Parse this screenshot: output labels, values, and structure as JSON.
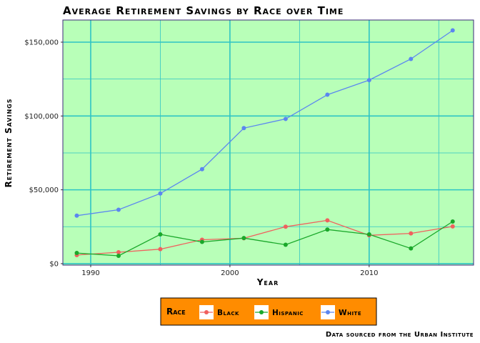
{
  "chart_data": {
    "type": "line",
    "title": "Average Retirement Savings by Race over Time",
    "xlabel": "Year",
    "ylabel": "Retirement Savings",
    "caption": "Data sourced from the Urban Institute",
    "xlim": [
      1988,
      2017.5
    ],
    "ylim": [
      -1000,
      165000
    ],
    "x_ticks": [
      1990,
      2000,
      2010
    ],
    "x_tick_labels": [
      "1990",
      "2000",
      "2010"
    ],
    "y_ticks": [
      0,
      50000,
      100000,
      150000
    ],
    "y_tick_labels": [
      "$0",
      "$50,000",
      "$100,000",
      "$150,000"
    ],
    "x_minor": [
      1995,
      2005,
      2015
    ],
    "y_minor": [
      25000,
      75000,
      125000
    ],
    "grid": true,
    "legend": {
      "title": "Race",
      "position": "bottom"
    },
    "colors": {
      "plot_bg": "#b8ffb8",
      "grid": "#2ec4c4",
      "legend_bg": "#ff8c00",
      "axis": "#3b2a7a"
    },
    "x": [
      1989,
      1992,
      1995,
      1998,
      2001,
      2004,
      2007,
      2010,
      2013,
      2016
    ],
    "series": [
      {
        "name": "Black",
        "color": "#f0605e",
        "values": [
          5800,
          7700,
          9800,
          16200,
          17200,
          25000,
          29300,
          19200,
          20500,
          25200
        ]
      },
      {
        "name": "Hispanic",
        "color": "#1aa82a",
        "values": [
          7200,
          5300,
          19800,
          14700,
          17300,
          12800,
          23100,
          19800,
          10300,
          28500
        ]
      },
      {
        "name": "White",
        "color": "#5b86f0",
        "values": [
          32500,
          36500,
          47500,
          64000,
          91800,
          98000,
          114400,
          124300,
          138600,
          158000
        ]
      }
    ]
  }
}
